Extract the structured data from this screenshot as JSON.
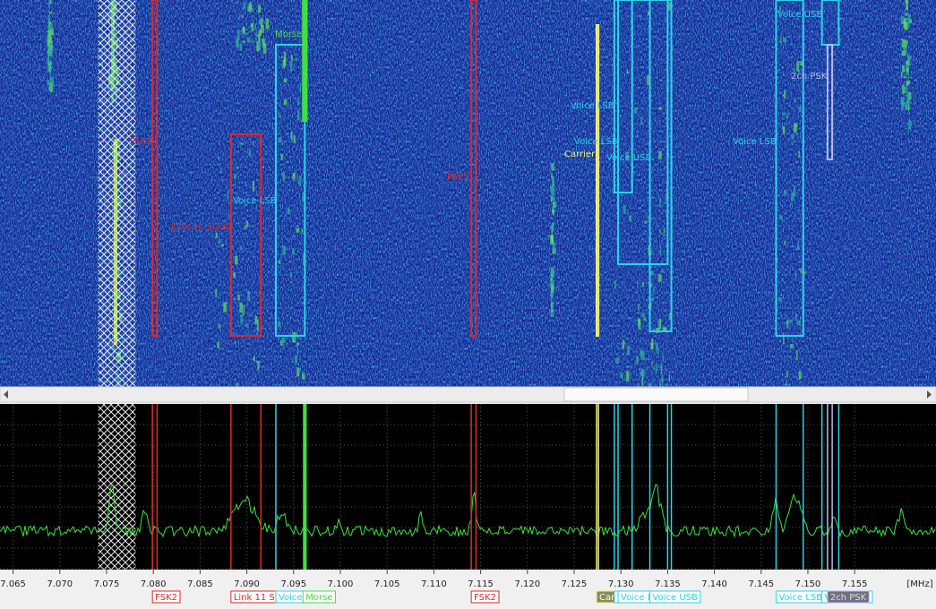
{
  "spectrum": {
    "axis": {
      "unit": "[MHz]",
      "range": [
        7.0636,
        7.1637
      ],
      "ticks": [
        {
          "value": 7.065,
          "label": "7.065"
        },
        {
          "value": 7.07,
          "label": "7.070"
        },
        {
          "value": 7.075,
          "label": "7.075"
        },
        {
          "value": 7.08,
          "label": "7.080"
        },
        {
          "value": 7.085,
          "label": "7.085"
        },
        {
          "value": 7.09,
          "label": "7.090"
        },
        {
          "value": 7.095,
          "label": "7.095"
        },
        {
          "value": 7.1,
          "label": "7.100"
        },
        {
          "value": 7.105,
          "label": "7.105"
        },
        {
          "value": 7.11,
          "label": "7.110"
        },
        {
          "value": 7.115,
          "label": "7.115"
        },
        {
          "value": 7.12,
          "label": "7.120"
        },
        {
          "value": 7.125,
          "label": "7.125"
        },
        {
          "value": 7.13,
          "label": "7.130"
        },
        {
          "value": 7.135,
          "label": "7.135"
        },
        {
          "value": 7.14,
          "label": "7.140"
        },
        {
          "value": 7.145,
          "label": "7.145"
        },
        {
          "value": 7.15,
          "label": "7.150"
        },
        {
          "value": 7.155,
          "label": "7.155"
        }
      ]
    },
    "excluded_band": {
      "lo": 7.0741,
      "hi": 7.0781
    },
    "signals": [
      {
        "label": "FSK2",
        "color": "#e02828",
        "lo": 7.0799,
        "hi": 7.0804
      },
      {
        "label": "Link 11 SLEW",
        "color": "#e02828",
        "lo": 7.0883,
        "hi": 7.0915
      },
      {
        "label": "Voice LSB",
        "color": "#2cd3e8",
        "lo": 7.0931,
        "hi": 7.0962
      },
      {
        "label": "Morse",
        "color": "#40e040",
        "lo": 7.096,
        "hi": 7.0964
      },
      {
        "label": "FSK2",
        "color": "#e02828",
        "lo": 7.114,
        "hi": 7.1145
      },
      {
        "label": "Carrier",
        "color": "#f0f080",
        "lo": 7.1274,
        "hi": 7.1276
      },
      {
        "label": "Voice LSB",
        "color": "#2cd3e8",
        "lo": 7.1293,
        "hi": 7.1312
      },
      {
        "label": "Voice LSB",
        "color": "#2cd3e8",
        "lo": 7.1297,
        "hi": 7.135
      },
      {
        "label": "Voice USB",
        "color": "#2cd3e8",
        "lo": 7.1331,
        "hi": 7.1354
      },
      {
        "label": "Voice LSB",
        "color": "#2cd3e8",
        "lo": 7.1466,
        "hi": 7.1495
      },
      {
        "label": "Voice USB",
        "color": "#2cd3e8",
        "lo": 7.1515,
        "hi": 7.1533
      },
      {
        "label": "2ch PSK",
        "color": "#b8b8ec",
        "lo": 7.1521,
        "hi": 7.1526
      }
    ]
  }
}
